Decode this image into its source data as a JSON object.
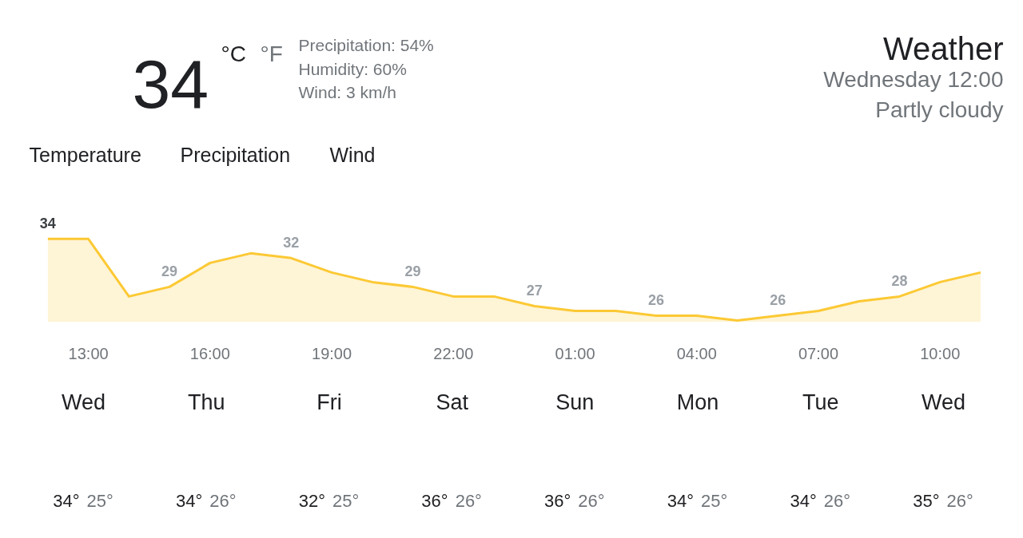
{
  "chart_data": [
    {
      "type": "other",
      "title": "Weather",
      "subtitle": "Wednesday 12:00",
      "annotations": [
        "Partly cloudy",
        "34",
        "°C",
        "°F",
        "Precipitation: 54%",
        "Humidity: 60%",
        "Wind: 3 km/h",
        "Temperature",
        "Precipitation",
        "Wind"
      ]
    },
    {
      "type": "area",
      "categories": [
        null,
        "13:00",
        null,
        null,
        "16:00",
        null,
        null,
        "19:00",
        null,
        null,
        "22:00",
        null,
        null,
        "01:00",
        null,
        null,
        "04:00",
        null,
        null,
        "07:00",
        null,
        null,
        "10:00",
        null
      ],
      "tick_labels": "x",
      "series": [
        {
          "color": "#fcc934",
          "values": [
            34,
            34,
            28,
            29,
            31.5,
            32.5,
            32,
            30.5,
            29.5,
            29,
            28,
            28,
            27,
            26.5,
            26.5,
            26,
            26,
            25.5,
            26,
            26.5,
            27.5,
            28,
            29.5,
            30.5
          ],
          "value_labels": [
            "34",
            null,
            null,
            "29",
            null,
            null,
            "32",
            null,
            null,
            "29",
            null,
            null,
            "27",
            null,
            null,
            "26",
            null,
            null,
            "26",
            null,
            null,
            "28",
            null,
            null
          ]
        }
      ]
    },
    {
      "type": "other",
      "categories": [
        "Wed",
        "Thu",
        "Fri",
        "Sat",
        "Sun",
        "Mon",
        "Tue",
        "Wed"
      ],
      "annotations": [
        "34°",
        "25°",
        "34°",
        "26°",
        "32°",
        "25°",
        "36°",
        "26°",
        "36°",
        "26°",
        "34°",
        "25°",
        "34°",
        "26°",
        "35°",
        "26°"
      ]
    }
  ]
}
